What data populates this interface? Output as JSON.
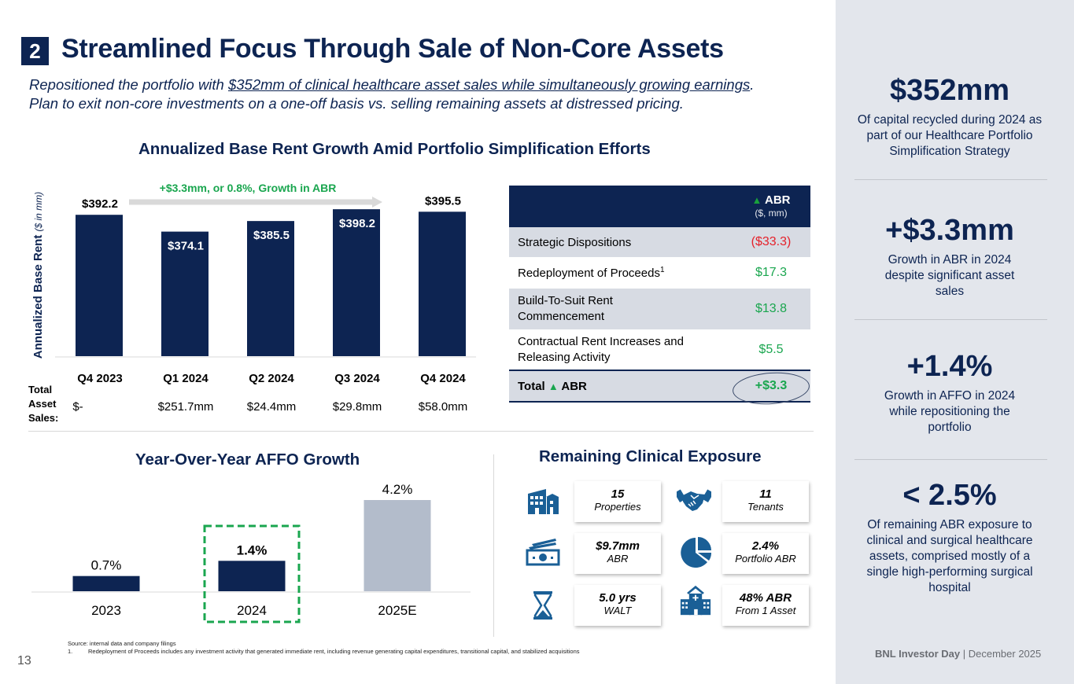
{
  "title": {
    "number": "2",
    "text": "Streamlined Focus Through Sale of Non-Core Assets"
  },
  "subtitle": {
    "line1_prefix": "Repositioned the portfolio with ",
    "line1_underlined": "$352mm of clinical healthcare asset sales while simultaneously growing earnings",
    "line1_suffix": ".",
    "line2": "Plan to exit non-core investments on a one-off basis vs. selling remaining assets at distressed pricing."
  },
  "chart_data": [
    {
      "type": "bar",
      "title": "Annualized Base Rent Growth Amid Portfolio Simplification Efforts",
      "ylabel": "Annualized Base Rent",
      "ylabel_unit": "($ in mm)",
      "xlabel": "",
      "categories": [
        "Q4 2023",
        "Q1 2024",
        "Q2 2024",
        "Q3 2024",
        "Q4 2024"
      ],
      "values": [
        392.2,
        374.1,
        385.5,
        398.2,
        395.5
      ],
      "data_labels": [
        "$392.2",
        "$374.1",
        "$385.5",
        "$398.2",
        "$395.5"
      ],
      "label_position": [
        "above",
        "inside",
        "inside",
        "inside",
        "above"
      ],
      "annotation": "+$3.3mm, or 0.8%, Growth in ABR",
      "annotation_arrow": {
        "from": "Q4 2023",
        "to": "Q4 2024"
      },
      "grid": false,
      "bar_color": "#0d2452",
      "secondary_row": {
        "label": "Total Asset Sales:",
        "values": [
          "$-",
          "$251.7mm",
          "$24.4mm",
          "$29.8mm",
          "$58.0mm"
        ]
      }
    },
    {
      "type": "bar",
      "title": "Year-Over-Year AFFO Growth",
      "xlabel": "",
      "ylabel": "",
      "categories": [
        "2023",
        "2024",
        "2025E"
      ],
      "values": [
        0.7,
        1.4,
        4.2
      ],
      "data_labels": [
        "0.7%",
        "1.4%",
        "4.2%"
      ],
      "bar_colors": [
        "#0d2452",
        "#0d2452",
        "#b3bccb"
      ],
      "highlight": "2024",
      "highlight_color": "#1aa64f",
      "grid": false
    },
    {
      "type": "table",
      "title": "ABR bridge",
      "columns": [
        "",
        "▲ ABR",
        "($, mm)"
      ],
      "rows": [
        {
          "label": "Strategic Dispositions",
          "sup": "",
          "value": "($33.3)",
          "tone": "negative"
        },
        {
          "label": "Redeployment of Proceeds",
          "sup": "1",
          "value": "$17.3",
          "tone": "positive"
        },
        {
          "label": "Build-To-Suit Rent Commencement",
          "sup": "",
          "value": "$13.8",
          "tone": "positive"
        },
        {
          "label": "Contractual Rent Increases and Releasing Activity",
          "sup": "",
          "value": "$5.5",
          "tone": "positive"
        }
      ],
      "total": {
        "label_prefix": "Total",
        "label_triangle": "▲",
        "label_suffix": "ABR",
        "value": "+$3.3"
      }
    }
  ],
  "table": {
    "header_triangle": "▲",
    "header_label": "ABR",
    "header_unit": "($, mm)",
    "rows": [
      {
        "label_line1": "Strategic Dispositions",
        "label_line2": "",
        "sup": "",
        "value": "($33.3)"
      },
      {
        "label_line1": "Redeployment of Proceeds",
        "label_line2": "",
        "sup": "1",
        "value": "$17.3"
      },
      {
        "label_line1": "Build-To-Suit Rent",
        "label_line2": "Commencement",
        "sup": "",
        "value": "$13.8"
      },
      {
        "label_line1": "Contractual Rent Increases and",
        "label_line2": "Releasing Activity",
        "sup": "",
        "value": "$5.5"
      }
    ],
    "total_prefix": "Total",
    "total_triangle": "▲",
    "total_suffix": "ABR",
    "total_value": "+$3.3"
  },
  "sales_row": {
    "label_lines": [
      "Total",
      "Asset",
      "Sales:"
    ]
  },
  "exposure": {
    "title": "Remaining Clinical Exposure",
    "items": [
      {
        "icon": "office-building-icon",
        "value": "15",
        "label": "Properties"
      },
      {
        "icon": "handshake-icon",
        "value": "11",
        "label": "Tenants"
      },
      {
        "icon": "cash-icon",
        "value": "$9.7mm",
        "label": "ABR"
      },
      {
        "icon": "pie-chart-icon",
        "value": "2.4%",
        "label": "Portfolio ABR"
      },
      {
        "icon": "hourglass-icon",
        "value": "5.0 yrs",
        "label": "WALT"
      },
      {
        "icon": "hospital-icon",
        "value": "48% ABR",
        "label": "From 1 Asset"
      }
    ]
  },
  "sidebar": {
    "stats": [
      {
        "value": "$352mm",
        "description": "Of capital recycled during 2024 as part of our Healthcare Portfolio Simplification Strategy"
      },
      {
        "value": "+$3.3mm",
        "description": "Growth in ABR in 2024 despite significant asset sales"
      },
      {
        "value": "+1.4%",
        "description": "Growth in AFFO in 2024 while repositioning the portfolio"
      },
      {
        "value": "< 2.5%",
        "description": "Of remaining ABR exposure to clinical and surgical healthcare assets, comprised mostly of a single high-performing surgical hospital"
      }
    ]
  },
  "footer": {
    "source": "Source: internal data and company filings",
    "note_number": "1.",
    "note": "Redeployment of Proceeds includes any investment activity that generated immediate rent, including revenue generating capital expenditures, transitional capital, and stabilized acquisitions",
    "page_number": "13",
    "brand_bold": "BNL Investor Day",
    "brand_sep": " | ",
    "brand_date": "December 2025"
  },
  "colors": {
    "navy": "#0d2452",
    "green": "#1aa64f",
    "red": "#e5222b",
    "icon_blue": "#1a5f96",
    "forecast_gray": "#b3bccb",
    "panel_gray": "#e3e6ec"
  }
}
